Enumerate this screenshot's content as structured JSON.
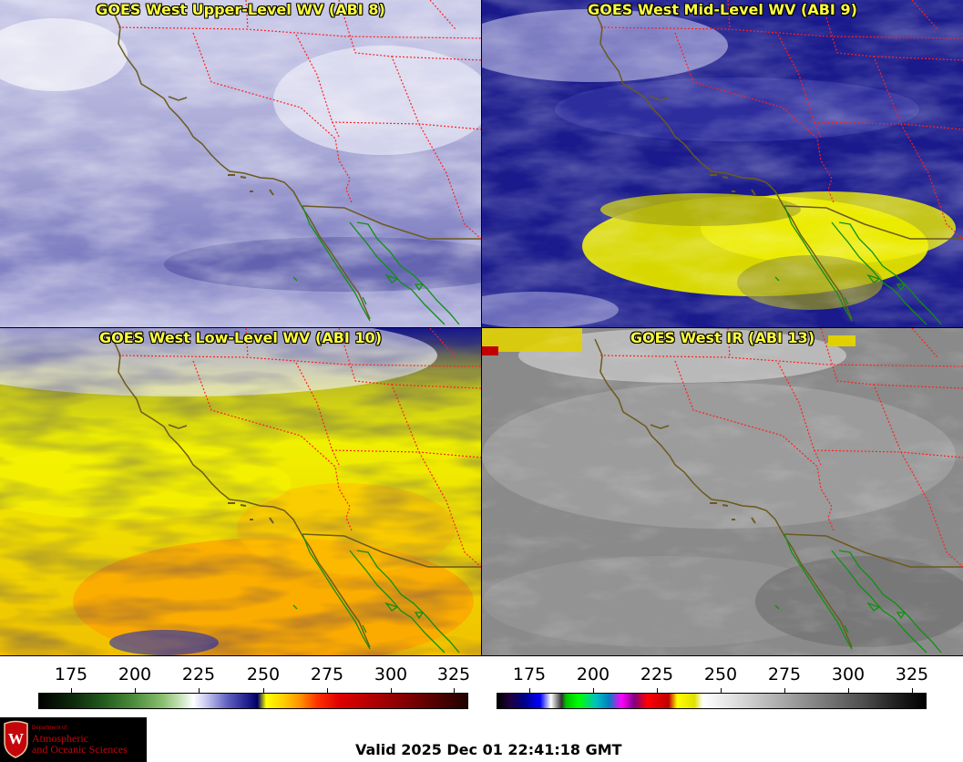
{
  "panels": {
    "upper": {
      "title": "GOES West Upper-Level WV (ABI 8)"
    },
    "mid": {
      "title": "GOES West Mid-Level WV (ABI 9)"
    },
    "low": {
      "title": "GOES West Low-Level WV (ABI 10)"
    },
    "ir": {
      "title": "GOES West IR (ABI 13)"
    }
  },
  "colorbars": {
    "wv": {
      "ticks": [
        "175",
        "200",
        "225",
        "250",
        "275",
        "300",
        "325"
      ]
    },
    "ir": {
      "ticks": [
        "175",
        "200",
        "225",
        "250",
        "275",
        "300",
        "325"
      ]
    }
  },
  "footer": {
    "valid": "Valid 2025 Dec 01 22:41:18 GMT",
    "logo": {
      "dept": "Department of",
      "line1": "Atmospheric",
      "line2": "and Oceanic Sciences",
      "shield_letter": "W"
    }
  },
  "colors": {
    "title_text": "#ffff3c",
    "coastline": "#6b5a1e",
    "state_borders": "#ff2020",
    "mexico_coast": "#109010"
  }
}
